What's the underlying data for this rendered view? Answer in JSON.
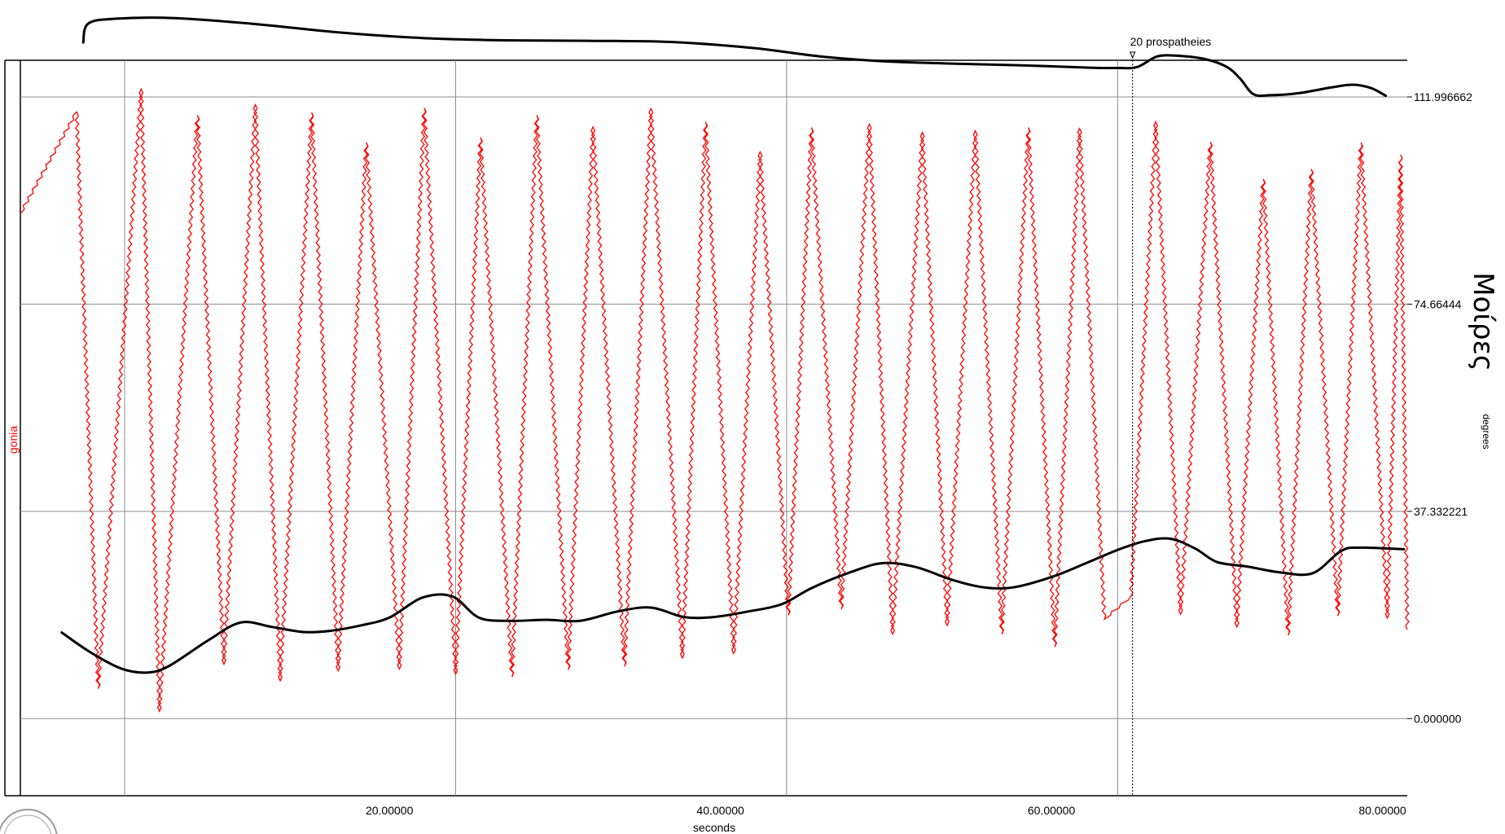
{
  "chart_data": {
    "type": "line",
    "xlabel": "seconds",
    "ylabel": "degrees",
    "y_title": "Μοίρες",
    "series_label": "gonia",
    "xlim": [
      -2.3,
      81.5
    ],
    "ylim": [
      -13.9,
      118.6
    ],
    "x_ticks": [
      {
        "value": 20,
        "label": "20.00000"
      },
      {
        "value": 40,
        "label": "40.00000"
      },
      {
        "value": 60,
        "label": "60.00000"
      },
      {
        "value": 80,
        "label": "80.00000"
      }
    ],
    "y_ticks": [
      {
        "value": 0,
        "label": "0.000000"
      },
      {
        "value": 37.332221,
        "label": "37.332221"
      },
      {
        "value": 74.664442,
        "label": "74.66444"
      },
      {
        "value": 111.996662,
        "label": "111.996662"
      }
    ],
    "grid_x": [
      4.0,
      24.0,
      44.0,
      64.0
    ],
    "marker": {
      "x": 64.9,
      "label": "20 prospatheies"
    },
    "colors": {
      "series": "#ff0000",
      "overlay": "#000000",
      "grid": "#8c8c8c"
    },
    "series": [
      {
        "name": "gonia",
        "start": {
          "x": -2.3,
          "y": 91
        },
        "end": {
          "x": 81.5,
          "y": 16
        },
        "peaks": [
          {
            "x": 1.1,
            "y": 109.3
          },
          {
            "x": 5.0,
            "y": 113.4
          },
          {
            "x": 8.4,
            "y": 108.7
          },
          {
            "x": 11.9,
            "y": 110.6
          },
          {
            "x": 15.3,
            "y": 109.2
          },
          {
            "x": 18.6,
            "y": 103.8
          },
          {
            "x": 22.1,
            "y": 110.0
          },
          {
            "x": 25.5,
            "y": 104.7
          },
          {
            "x": 28.9,
            "y": 108.7
          },
          {
            "x": 32.3,
            "y": 106.6
          },
          {
            "x": 35.8,
            "y": 109.9
          },
          {
            "x": 39.1,
            "y": 107.5
          },
          {
            "x": 42.4,
            "y": 102.1
          },
          {
            "x": 45.5,
            "y": 106.5
          },
          {
            "x": 49.0,
            "y": 107.1
          },
          {
            "x": 52.2,
            "y": 105.6
          },
          {
            "x": 55.4,
            "y": 105.9
          },
          {
            "x": 58.6,
            "y": 106.5
          },
          {
            "x": 61.7,
            "y": 106.3
          },
          {
            "x": 66.3,
            "y": 107.5
          },
          {
            "x": 69.6,
            "y": 103.9
          },
          {
            "x": 72.8,
            "y": 97.2
          },
          {
            "x": 75.7,
            "y": 99.0
          },
          {
            "x": 78.7,
            "y": 103.8
          },
          {
            "x": 81.1,
            "y": 101.6
          }
        ],
        "troughs": [
          {
            "x": 2.4,
            "y": 5.4
          },
          {
            "x": 6.1,
            "y": 1.3
          },
          {
            "x": 10.0,
            "y": 9.8
          },
          {
            "x": 13.4,
            "y": 6.8
          },
          {
            "x": 16.9,
            "y": 8.6
          },
          {
            "x": 20.6,
            "y": 8.9
          },
          {
            "x": 24.0,
            "y": 8.0
          },
          {
            "x": 27.4,
            "y": 7.5
          },
          {
            "x": 30.8,
            "y": 8.8
          },
          {
            "x": 34.2,
            "y": 9.4
          },
          {
            "x": 37.7,
            "y": 10.9
          },
          {
            "x": 40.8,
            "y": 11.7
          },
          {
            "x": 44.1,
            "y": 18.6
          },
          {
            "x": 47.3,
            "y": 19.7
          },
          {
            "x": 50.4,
            "y": 15.2
          },
          {
            "x": 53.7,
            "y": 16.8
          },
          {
            "x": 57.0,
            "y": 15.2
          },
          {
            "x": 60.2,
            "y": 12.9
          },
          {
            "x": 63.2,
            "y": 17.9
          },
          {
            "x": 64.8,
            "y": 22.0
          },
          {
            "x": 67.8,
            "y": 18.8
          },
          {
            "x": 71.2,
            "y": 16.5
          },
          {
            "x": 74.3,
            "y": 15.0
          },
          {
            "x": 77.3,
            "y": 18.5
          },
          {
            "x": 80.3,
            "y": 18.1
          }
        ]
      },
      {
        "name": "",
        "points": [
          {
            "x": 0.2,
            "y": 15.5
          },
          {
            "x": 1.9,
            "y": 12.0
          },
          {
            "x": 3.8,
            "y": 9.0
          },
          {
            "x": 5.4,
            "y": 8.3
          },
          {
            "x": 6.7,
            "y": 9.5
          },
          {
            "x": 9.0,
            "y": 14.0
          },
          {
            "x": 11.0,
            "y": 17.3
          },
          {
            "x": 12.9,
            "y": 16.5
          },
          {
            "x": 14.8,
            "y": 15.6
          },
          {
            "x": 16.4,
            "y": 15.8
          },
          {
            "x": 18.3,
            "y": 16.8
          },
          {
            "x": 20.0,
            "y": 18.2
          },
          {
            "x": 22.0,
            "y": 21.8
          },
          {
            "x": 23.8,
            "y": 22.0
          },
          {
            "x": 25.4,
            "y": 18.2
          },
          {
            "x": 27.2,
            "y": 17.6
          },
          {
            "x": 29.5,
            "y": 17.8
          },
          {
            "x": 31.5,
            "y": 17.6
          },
          {
            "x": 33.8,
            "y": 19.3
          },
          {
            "x": 35.8,
            "y": 20.0
          },
          {
            "x": 37.8,
            "y": 18.3
          },
          {
            "x": 39.6,
            "y": 18.3
          },
          {
            "x": 41.7,
            "y": 19.3
          },
          {
            "x": 43.7,
            "y": 20.6
          },
          {
            "x": 45.5,
            "y": 23.5
          },
          {
            "x": 47.8,
            "y": 26.3
          },
          {
            "x": 49.8,
            "y": 28.0
          },
          {
            "x": 51.8,
            "y": 27.3
          },
          {
            "x": 54.0,
            "y": 25.0
          },
          {
            "x": 56.0,
            "y": 23.6
          },
          {
            "x": 57.8,
            "y": 23.7
          },
          {
            "x": 60.1,
            "y": 25.6
          },
          {
            "x": 62.1,
            "y": 28.0
          },
          {
            "x": 64.1,
            "y": 30.5
          },
          {
            "x": 65.7,
            "y": 32.0
          },
          {
            "x": 67.2,
            "y": 32.4
          },
          {
            "x": 68.7,
            "y": 30.6
          },
          {
            "x": 70.0,
            "y": 28.2
          },
          {
            "x": 71.8,
            "y": 27.4
          },
          {
            "x": 73.9,
            "y": 26.3
          },
          {
            "x": 75.8,
            "y": 26.2
          },
          {
            "x": 77.5,
            "y": 30.2
          },
          {
            "x": 78.7,
            "y": 30.8
          },
          {
            "x": 81.3,
            "y": 30.5
          }
        ]
      },
      {
        "name": "",
        "points": [
          {
            "x": 1.5,
            "y": 121.8
          },
          {
            "x": 1.8,
            "y": 125.2
          },
          {
            "x": 3.5,
            "y": 126.1
          },
          {
            "x": 7.0,
            "y": 126.2
          },
          {
            "x": 12.0,
            "y": 125.1
          },
          {
            "x": 17.0,
            "y": 123.6
          },
          {
            "x": 22.0,
            "y": 122.6
          },
          {
            "x": 27.0,
            "y": 122.2
          },
          {
            "x": 32.0,
            "y": 122.1
          },
          {
            "x": 37.0,
            "y": 121.9
          },
          {
            "x": 42.0,
            "y": 120.8
          },
          {
            "x": 46.0,
            "y": 119.3
          },
          {
            "x": 50.0,
            "y": 118.4
          },
          {
            "x": 54.0,
            "y": 118.0
          },
          {
            "x": 58.0,
            "y": 117.7
          },
          {
            "x": 62.0,
            "y": 117.3
          },
          {
            "x": 64.0,
            "y": 117.2
          },
          {
            "x": 65.2,
            "y": 117.4
          },
          {
            "x": 66.4,
            "y": 119.3
          },
          {
            "x": 67.7,
            "y": 119.4
          },
          {
            "x": 69.3,
            "y": 118.8
          },
          {
            "x": 70.6,
            "y": 117.4
          },
          {
            "x": 71.4,
            "y": 115.3
          },
          {
            "x": 72.2,
            "y": 112.5
          },
          {
            "x": 73.2,
            "y": 112.3
          },
          {
            "x": 75.0,
            "y": 112.7
          },
          {
            "x": 76.9,
            "y": 113.7
          },
          {
            "x": 78.2,
            "y": 114.2
          },
          {
            "x": 79.3,
            "y": 113.6
          },
          {
            "x": 80.2,
            "y": 112.2
          }
        ]
      }
    ]
  }
}
